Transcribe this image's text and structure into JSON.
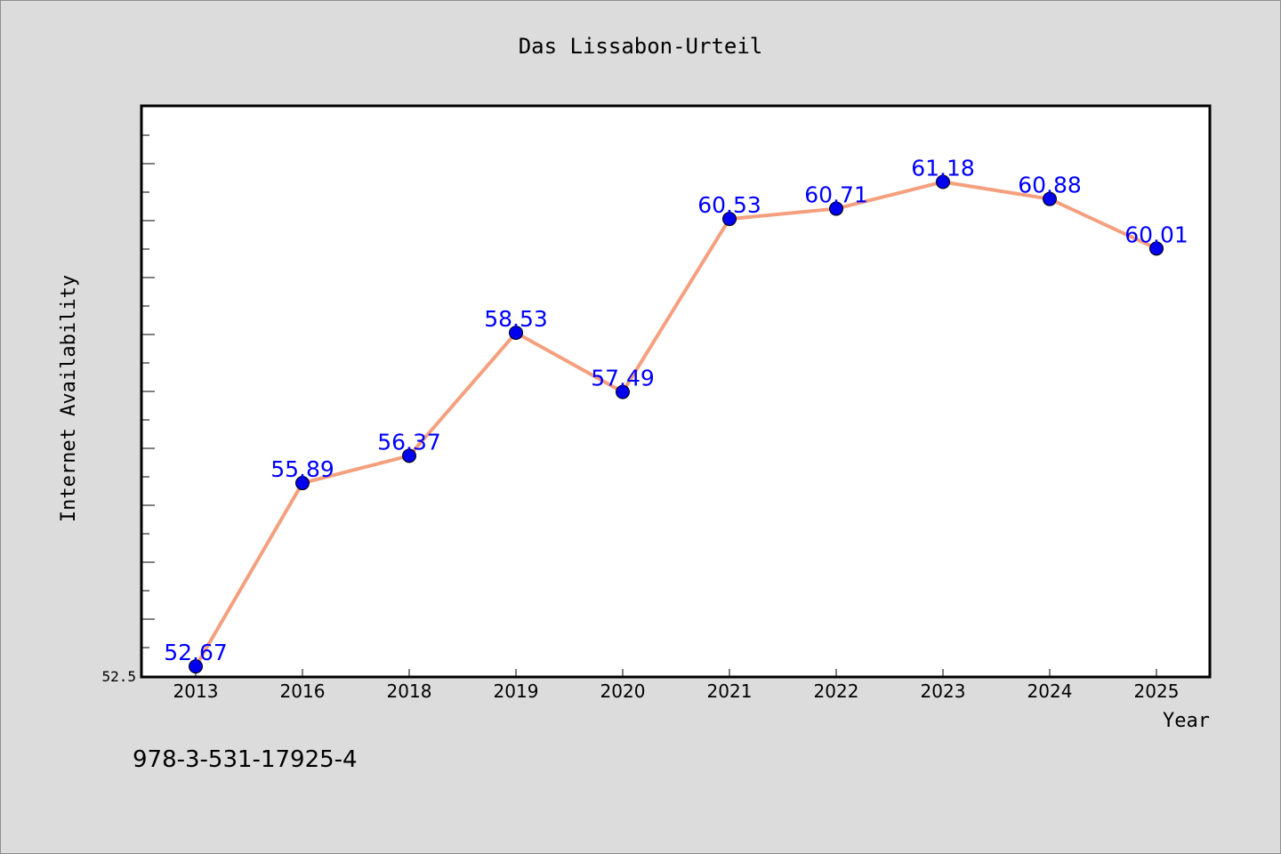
{
  "chart_data": {
    "type": "line",
    "title": "Das Lissabon-Urteil",
    "xlabel": "Year",
    "ylabel": "Internet Availability",
    "categories": [
      "2013",
      "2016",
      "2018",
      "2019",
      "2020",
      "2021",
      "2022",
      "2023",
      "2024",
      "2025"
    ],
    "series": [
      {
        "values": [
          52.67,
          55.89,
          56.37,
          58.53,
          57.49,
          60.53,
          60.71,
          61.18,
          60.88,
          60.01
        ]
      }
    ],
    "data_labels": [
      "52.67",
      "55.89",
      "56.37",
      "58.53",
      "57.49",
      "60.53",
      "60.71",
      "61.18",
      "60.88",
      "60.01"
    ],
    "ylim": [
      52.5,
      62.5
    ],
    "y_tick_labels": [
      "52.5"
    ],
    "grid": false,
    "line_color": "#f4a07e",
    "marker_color": "#0000ee",
    "label_color": "#0000ff"
  },
  "footer": {
    "isbn": "978-3-531-17925-4"
  }
}
